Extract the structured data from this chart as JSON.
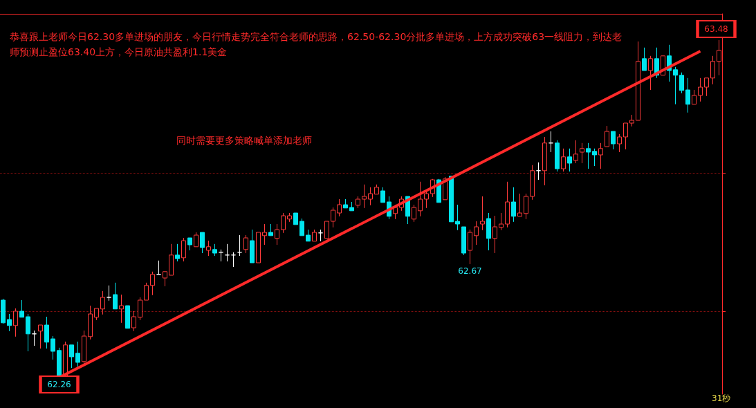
{
  "chart_data": {
    "type": "candlestick",
    "categories": [
      null,
      null,
      null,
      null,
      null,
      null,
      null,
      null,
      null,
      null,
      null,
      null,
      null,
      null,
      null,
      null,
      null,
      null,
      null,
      null,
      null,
      null,
      null,
      null,
      null,
      null,
      null,
      null,
      null,
      null,
      null,
      null,
      null,
      null,
      null,
      null,
      null,
      null,
      null,
      null,
      null,
      null,
      null,
      null,
      null,
      null,
      null,
      null,
      null,
      null,
      null,
      null,
      null,
      null,
      null,
      null,
      null,
      null,
      null,
      null,
      null,
      null,
      null,
      null,
      null,
      null,
      null,
      null,
      null,
      null,
      null,
      null,
      null,
      null,
      null,
      null,
      null,
      null,
      null,
      null,
      null,
      null,
      null,
      null,
      null,
      null,
      null,
      null,
      null,
      null,
      null,
      null,
      null,
      null,
      null,
      null,
      null,
      null,
      null,
      null,
      null,
      null,
      null,
      null,
      null,
      null,
      null,
      null,
      null,
      null,
      null,
      null,
      null,
      null,
      null,
      null
    ],
    "ohlc": [
      [
        62.54,
        62.545,
        62.455,
        62.458
      ],
      [
        62.47,
        62.49,
        62.428,
        62.448
      ],
      [
        62.448,
        62.51,
        62.408,
        62.5
      ],
      [
        62.5,
        62.54,
        62.478,
        62.478
      ],
      [
        62.48,
        62.49,
        62.355,
        62.418
      ],
      [
        62.418,
        62.43,
        62.375,
        62.418
      ],
      [
        62.428,
        62.45,
        62.365,
        62.45
      ],
      [
        62.45,
        62.48,
        62.365,
        62.388
      ],
      [
        62.4,
        62.41,
        62.325,
        62.355
      ],
      [
        62.358,
        62.368,
        62.26,
        62.265
      ],
      [
        62.265,
        62.39,
        62.263,
        62.378
      ],
      [
        62.378,
        62.378,
        62.295,
        62.335
      ],
      [
        62.348,
        62.39,
        62.295,
        62.315
      ],
      [
        62.318,
        62.43,
        62.305,
        62.41
      ],
      [
        62.408,
        62.52,
        62.398,
        62.49
      ],
      [
        62.478,
        62.51,
        62.468,
        62.51
      ],
      [
        62.508,
        62.573,
        62.488,
        62.55
      ],
      [
        62.55,
        62.593,
        62.538,
        62.55
      ],
      [
        62.56,
        62.603,
        62.508,
        62.508
      ],
      [
        62.508,
        62.56,
        62.458,
        62.52
      ],
      [
        62.52,
        62.52,
        62.438,
        62.438
      ],
      [
        62.44,
        62.5,
        62.428,
        62.48
      ],
      [
        62.478,
        62.55,
        62.468,
        62.54
      ],
      [
        62.54,
        62.603,
        62.54,
        62.593
      ],
      [
        62.593,
        62.643,
        62.558,
        62.633
      ],
      [
        62.633,
        62.683,
        62.633,
        62.633
      ],
      [
        62.62,
        62.643,
        62.59,
        62.643
      ],
      [
        62.63,
        62.743,
        62.63,
        62.703
      ],
      [
        62.703,
        62.743,
        62.68,
        62.69
      ],
      [
        62.693,
        62.765,
        62.68,
        62.755
      ],
      [
        62.765,
        62.765,
        62.72,
        62.74
      ],
      [
        62.733,
        62.785,
        62.733,
        62.775
      ],
      [
        62.785,
        62.785,
        62.71,
        62.73
      ],
      [
        62.72,
        62.755,
        62.7,
        62.733
      ],
      [
        62.723,
        62.743,
        62.7,
        62.71
      ],
      [
        62.713,
        62.723,
        62.68,
        62.713
      ],
      [
        62.703,
        62.743,
        62.68,
        62.703
      ],
      [
        62.703,
        62.713,
        62.66,
        62.703
      ],
      [
        62.713,
        62.775,
        62.7,
        62.713
      ],
      [
        62.723,
        62.775,
        62.71,
        62.765
      ],
      [
        62.755,
        62.795,
        62.675,
        62.675
      ],
      [
        62.675,
        62.785,
        62.675,
        62.785
      ],
      [
        62.773,
        62.815,
        62.74,
        62.785
      ],
      [
        62.785,
        62.815,
        62.773,
        62.773
      ],
      [
        62.763,
        62.815,
        62.74,
        62.795
      ],
      [
        62.795,
        62.855,
        62.783,
        62.845
      ],
      [
        62.833,
        62.855,
        62.823,
        62.845
      ],
      [
        62.855,
        62.855,
        62.813,
        62.813
      ],
      [
        62.825,
        62.835,
        62.773,
        62.773
      ],
      [
        62.775,
        62.795,
        62.753,
        62.753
      ],
      [
        62.753,
        62.795,
        62.753,
        62.785
      ],
      [
        62.783,
        62.795,
        62.753,
        62.783
      ],
      [
        62.763,
        62.825,
        62.763,
        62.825
      ],
      [
        62.825,
        62.875,
        62.803,
        62.865
      ],
      [
        62.855,
        62.905,
        62.843,
        62.885
      ],
      [
        62.885,
        62.905,
        62.873,
        62.873
      ],
      [
        62.875,
        62.895,
        62.863,
        62.863
      ],
      [
        62.883,
        62.915,
        62.873,
        62.905
      ],
      [
        62.905,
        62.958,
        62.873,
        62.915
      ],
      [
        62.905,
        62.948,
        62.883,
        62.925
      ],
      [
        62.923,
        62.958,
        62.923,
        62.948
      ],
      [
        62.935,
        62.948,
        62.893,
        62.893
      ],
      [
        62.895,
        62.915,
        62.833,
        62.843
      ],
      [
        62.853,
        62.885,
        62.833,
        62.875
      ],
      [
        62.875,
        62.915,
        62.863,
        62.905
      ],
      [
        62.915,
        62.915,
        62.815,
        62.843
      ],
      [
        62.833,
        62.885,
        62.823,
        62.875
      ],
      [
        62.863,
        62.968,
        62.843,
        62.905
      ],
      [
        62.905,
        62.935,
        62.873,
        62.925
      ],
      [
        62.925,
        62.978,
        62.913,
        62.975
      ],
      [
        62.975,
        62.978,
        62.893,
        62.893
      ],
      [
        62.903,
        62.985,
        62.903,
        62.978
      ],
      [
        62.988,
        62.988,
        62.823,
        62.823
      ],
      [
        62.825,
        62.885,
        62.793,
        62.815
      ],
      [
        62.805,
        62.805,
        62.703,
        62.71
      ],
      [
        62.72,
        62.795,
        62.67,
        62.785
      ],
      [
        62.773,
        62.825,
        62.74,
        62.805
      ],
      [
        62.815,
        62.915,
        62.793,
        62.825
      ],
      [
        62.835,
        62.855,
        62.72,
        62.763
      ],
      [
        62.763,
        62.845,
        62.71,
        62.805
      ],
      [
        62.803,
        62.855,
        62.793,
        62.815
      ],
      [
        62.815,
        62.968,
        62.803,
        62.895
      ],
      [
        62.895,
        62.948,
        62.823,
        62.843
      ],
      [
        62.843,
        62.925,
        62.843,
        62.855
      ],
      [
        62.853,
        62.925,
        62.833,
        62.915
      ],
      [
        62.915,
        63.028,
        62.903,
        63.008
      ],
      [
        63.008,
        63.038,
        62.975,
        63.008
      ],
      [
        63.008,
        63.13,
        62.955,
        63.108
      ],
      [
        63.108,
        63.15,
        63.075,
        63.108
      ],
      [
        63.108,
        63.118,
        63.005,
        63.015
      ],
      [
        63.015,
        63.088,
        63.005,
        63.058
      ],
      [
        63.058,
        63.088,
        63.005,
        63.035
      ],
      [
        63.045,
        63.118,
        63.035,
        63.068
      ],
      [
        63.075,
        63.108,
        63.035,
        63.088
      ],
      [
        63.088,
        63.108,
        63.015,
        63.075
      ],
      [
        63.078,
        63.088,
        63.025,
        63.065
      ],
      [
        63.065,
        63.108,
        63.015,
        63.088
      ],
      [
        63.095,
        63.17,
        63.095,
        63.15
      ],
      [
        63.15,
        63.15,
        63.085,
        63.105
      ],
      [
        63.105,
        63.14,
        63.075,
        63.13
      ],
      [
        63.13,
        63.18,
        63.085,
        63.18
      ],
      [
        63.18,
        63.21,
        63.168,
        63.19
      ],
      [
        63.19,
        63.475,
        63.19,
        63.403
      ],
      [
        63.413,
        63.453,
        63.37,
        63.37
      ],
      [
        63.37,
        63.423,
        63.3,
        63.413
      ],
      [
        63.413,
        63.453,
        63.343,
        63.353
      ],
      [
        63.353,
        63.423,
        63.353,
        63.423
      ],
      [
        63.423,
        63.463,
        63.33,
        63.37
      ],
      [
        63.373,
        63.383,
        63.248,
        63.353
      ],
      [
        63.353,
        63.363,
        63.288,
        63.298
      ],
      [
        63.3,
        63.343,
        63.218,
        63.248
      ],
      [
        63.248,
        63.3,
        63.248,
        63.28
      ],
      [
        63.28,
        63.343,
        63.258,
        63.31
      ],
      [
        63.31,
        63.343,
        63.278,
        63.343
      ],
      [
        63.343,
        63.423,
        63.32,
        63.403
      ],
      [
        63.403,
        63.48,
        63.353,
        63.443
      ]
    ],
    "colors": [
      "#00e5ee",
      "#00e5ee",
      "#ff3b3b",
      "#00e5ee",
      "#00e5ee",
      "#ffffff",
      "#ff3b3b",
      "#00e5ee",
      "#00e5ee",
      "#00e5ee",
      "#ff3b3b",
      "#00e5ee",
      "#00e5ee",
      "#ff3b3b",
      "#ff3b3b",
      "#ff3b3b",
      "#ff3b3b",
      "#ffffff",
      "#00e5ee",
      "#ff3b3b",
      "#00e5ee",
      "#ff3b3b",
      "#ff3b3b",
      "#ff3b3b",
      "#ff3b3b",
      "#ffffff",
      "#ff3b3b",
      "#ff3b3b",
      "#00e5ee",
      "#ff3b3b",
      "#00e5ee",
      "#ff3b3b",
      "#00e5ee",
      "#ff3b3b",
      "#00e5ee",
      "#ffffff",
      "#ffffff",
      "#ffffff",
      "#ffffff",
      "#ff3b3b",
      "#00e5ee",
      "#ff3b3b",
      "#ff3b3b",
      "#00e5ee",
      "#ff3b3b",
      "#ff3b3b",
      "#ff3b3b",
      "#00e5ee",
      "#00e5ee",
      "#00e5ee",
      "#ff3b3b",
      "#ffffff",
      "#ff3b3b",
      "#ff3b3b",
      "#ff3b3b",
      "#00e5ee",
      "#00e5ee",
      "#ff3b3b",
      "#ff3b3b",
      "#ff3b3b",
      "#ff3b3b",
      "#00e5ee",
      "#00e5ee",
      "#ff3b3b",
      "#ff3b3b",
      "#00e5ee",
      "#ff3b3b",
      "#ff3b3b",
      "#ff3b3b",
      "#ff3b3b",
      "#00e5ee",
      "#ff3b3b",
      "#00e5ee",
      "#00e5ee",
      "#00e5ee",
      "#ff3b3b",
      "#ff3b3b",
      "#ff3b3b",
      "#00e5ee",
      "#ff3b3b",
      "#ff3b3b",
      "#ff3b3b",
      "#00e5ee",
      "#ff3b3b",
      "#ff3b3b",
      "#ff3b3b",
      "#ffffff",
      "#ff3b3b",
      "#ffffff",
      "#00e5ee",
      "#ff3b3b",
      "#00e5ee",
      "#ff3b3b",
      "#ff3b3b",
      "#00e5ee",
      "#00e5ee",
      "#ff3b3b",
      "#ff3b3b",
      "#00e5ee",
      "#ff3b3b",
      "#ff3b3b",
      "#ff3b3b",
      "#ff3b3b",
      "#00e5ee",
      "#ff3b3b",
      "#00e5ee",
      "#ff3b3b",
      "#00e5ee",
      "#00e5ee",
      "#00e5ee",
      "#00e5ee",
      "#ff3b3b",
      "#ff3b3b",
      "#ff3b3b",
      "#ff3b3b",
      "#ff3b3b"
    ],
    "ylim": [
      62.2,
      63.575
    ],
    "yticks": [
      {
        "value": 62.5,
        "label": null
      },
      {
        "value": 63,
        "label": null
      }
    ],
    "grid": "y",
    "annotations": [
      "恭喜跟上老师今日62.30多单进场的朋友，今日行情走势完全符合老师的思路，62.50-62.30分批多单进场，上方成功突破63一线阻力，到达老师预测止盈位63.40上方，今日原油共盈利1.1美金",
      "同时需要更多策略喊单添加老师",
      "31秒",
      {
        "text": "62.26",
        "y": 62.26
      },
      {
        "text": "62.67",
        "y": 62.67
      },
      {
        "text": "63.48",
        "y": 63.48
      }
    ]
  }
}
